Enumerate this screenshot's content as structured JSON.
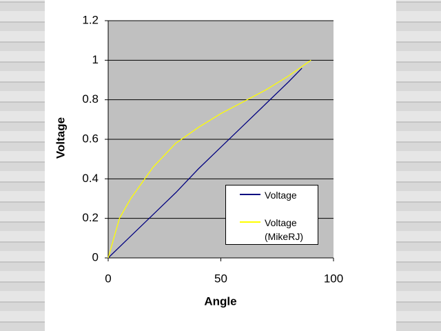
{
  "chart_data": {
    "type": "line",
    "x_label": "Angle",
    "y_label": "Voltage",
    "xlim": [
      0,
      100
    ],
    "xticks": [
      0,
      50,
      100
    ],
    "ylim": [
      0,
      1.2
    ],
    "yticks": [
      0,
      0.2,
      0.4,
      0.6,
      0.8,
      1,
      1.2
    ],
    "grid": true,
    "legend": "lower right",
    "series": [
      {
        "name": "Voltage",
        "color": "#000080",
        "x": [
          0,
          10,
          20,
          30,
          40,
          50,
          60,
          70,
          80,
          86
        ],
        "values": [
          0,
          0.11,
          0.22,
          0.33,
          0.45,
          0.56,
          0.67,
          0.78,
          0.89,
          0.96
        ]
      },
      {
        "name": "Voltage (MikeRJ)",
        "color": "#ffff00",
        "x": [
          0,
          5,
          10,
          20,
          30,
          40,
          50,
          60,
          70,
          80,
          90
        ],
        "values": [
          0,
          0.2,
          0.3,
          0.46,
          0.58,
          0.66,
          0.73,
          0.79,
          0.85,
          0.92,
          1.0
        ]
      }
    ]
  }
}
